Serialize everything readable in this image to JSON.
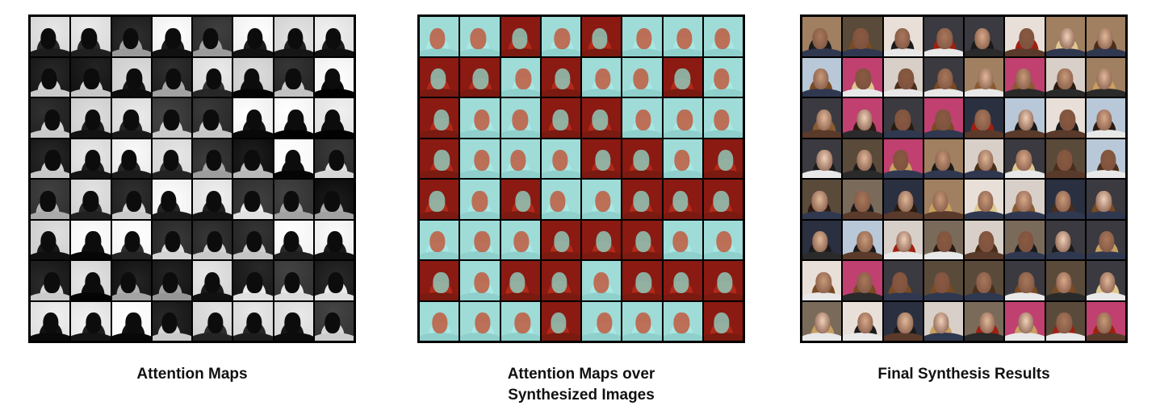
{
  "grid": {
    "rows": 8,
    "cols": 8
  },
  "panels": [
    {
      "id": "attention",
      "caption_lines": [
        "Attention Maps"
      ],
      "style": "grayscale-mask",
      "colors": {
        "bright": "#f2f2f2",
        "dark": "#0a0a0a"
      }
    },
    {
      "id": "overlay",
      "caption_lines": [
        "Attention Maps over",
        "Synthesized Images"
      ],
      "style": "overlay",
      "colors": {
        "red": "#9a1a14",
        "cyan": "#9fe0dc"
      }
    },
    {
      "id": "final",
      "caption_lines": [
        "Final Synthesis Results"
      ],
      "style": "photo",
      "colors": {
        "skin": "#c89a78",
        "hair_dark": "#2a1a10"
      }
    }
  ]
}
